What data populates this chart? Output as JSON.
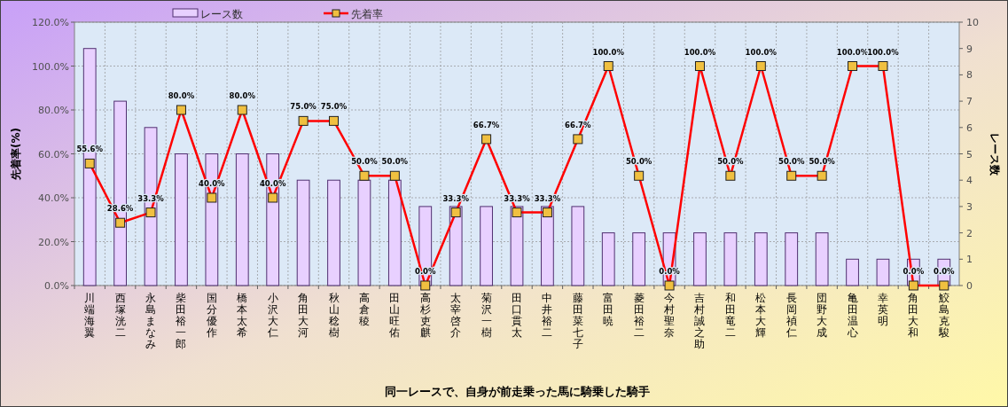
{
  "chart_data": {
    "type": "bar",
    "xlabel": "同一レースで、自身が前走乗った馬に騎乗した騎手",
    "ylabel": "先着率(%)",
    "y2label": "レース数",
    "categories": [
      "川端海翼",
      "西塚洸二",
      "永島まなみ",
      "柴田裕一郎",
      "国分優作",
      "橋本太希",
      "小沢大仁",
      "角田大河",
      "秋山稔樹",
      "高倉稜",
      "田山旺佑",
      "高杉吏麒",
      "太宰啓介",
      "菊沢一樹",
      "田口貫太",
      "中井裕二",
      "藤田菜七子",
      "富田暁",
      "菱田裕二",
      "今村聖奈",
      "吉村誠之助",
      "和田竜二",
      "松本大輝",
      "長岡禎仁",
      "団野大成",
      "亀田温心",
      "幸英明",
      "角田大和",
      "鮫島克駿"
    ],
    "series": [
      {
        "name": "レース数",
        "axis": "y2",
        "color": "#e8d0ff",
        "values": [
          9,
          7,
          6,
          5,
          5,
          5,
          5,
          4,
          4,
          4,
          4,
          3,
          3,
          3,
          3,
          3,
          3,
          2,
          2,
          2,
          2,
          2,
          2,
          2,
          2,
          1,
          1,
          1,
          1
        ]
      },
      {
        "name": "先着率",
        "type": "line",
        "color": "#ff0000",
        "marker": "square",
        "values": [
          55.6,
          28.6,
          33.3,
          80,
          40,
          80,
          40,
          75,
          75,
          50,
          50,
          0,
          33.3,
          66.7,
          33.3,
          33.3,
          66.7,
          100,
          50,
          0,
          100,
          50,
          100,
          50,
          50,
          100,
          100,
          0,
          0
        ],
        "value_labels": [
          "55.6%",
          "28.6%",
          "33.3%",
          "80.0%",
          "40.0%",
          "80.0%",
          "40.0%",
          "75.0%",
          "75.0%",
          "50.0%",
          "50.0%",
          "0.0%",
          "33.3%",
          "66.7%",
          "33.3%",
          "33.3%",
          "66.7%",
          "100.0%",
          "50.0%",
          "0.0%",
          "100.0%",
          "50.0%",
          "100.0%",
          "50.0%",
          "50.0%",
          "100.0%",
          "100.0%",
          "0.0%",
          "0.0%"
        ]
      }
    ],
    "ylim": [
      0,
      120
    ],
    "yticks": [
      {
        "value": 0,
        "label": "0.0%"
      },
      {
        "value": 20,
        "label": "20.0%"
      },
      {
        "value": 40,
        "label": "40.0%"
      },
      {
        "value": 60,
        "label": "60.0%"
      },
      {
        "value": 80,
        "label": "80.0%"
      },
      {
        "value": 100,
        "label": "100.0%"
      },
      {
        "value": 120,
        "label": "120.0%"
      }
    ],
    "y2lim": [
      0,
      10
    ],
    "y2ticks": [
      0,
      1,
      2,
      3,
      4,
      5,
      6,
      7,
      8,
      9,
      10
    ],
    "grid": true,
    "legend": "top"
  }
}
